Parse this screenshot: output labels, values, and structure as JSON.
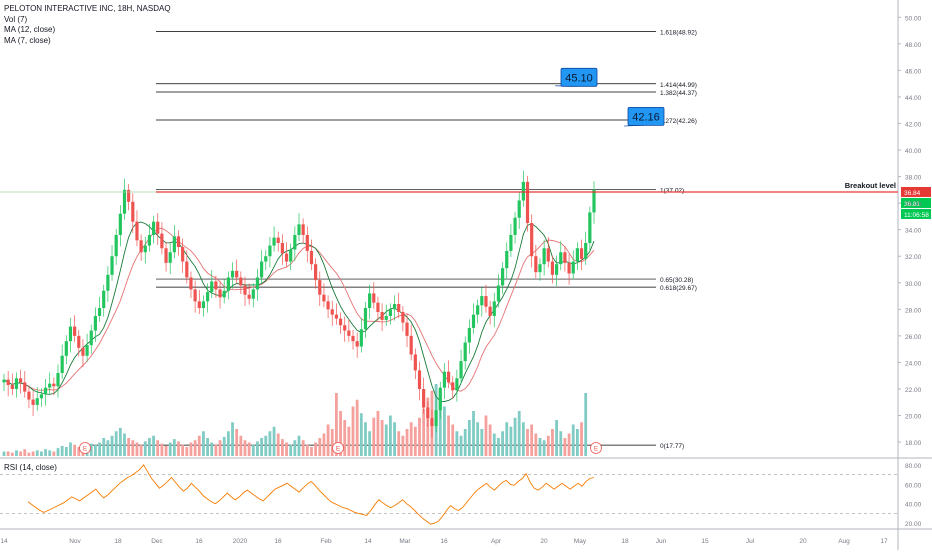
{
  "legend": {
    "title": "PELOTON INTERACTIVE INC, 18H, NASDAQ",
    "vol": "Vol (7)",
    "ma12": "MA (12, close)",
    "ma7": "MA (7, close)"
  },
  "colors": {
    "up": "#26a69a",
    "up_candle": "#22c55e",
    "down": "#ef5350",
    "vol_up": "#80cbc4",
    "vol_down": "#f4a09c",
    "ma_fast": "#1b7a3a",
    "ma_slow": "#e57373",
    "rsi": "#f57c00",
    "breakout": "#e53935",
    "callout": "#2196f3",
    "fib": "#000000"
  },
  "chart_data": [
    {
      "type": "candlestick",
      "title": "PELOTON INTERACTIVE INC, 18H, NASDAQ",
      "ylim": [
        16.8,
        51.0
      ],
      "y_ticks": [
        "50.00",
        "48.00",
        "46.00",
        "44.00",
        "42.00",
        "40.00",
        "38.00",
        "36.00",
        "34.00",
        "32.00",
        "30.00",
        "28.00",
        "26.00",
        "24.00",
        "22.00",
        "20.00",
        "18.00"
      ],
      "x_ticks": [
        "14",
        "Nov",
        "18",
        "Dec",
        "16",
        "2020",
        "16",
        "Feb",
        "14",
        "Mar",
        "16",
        "Apr",
        "20",
        "May",
        "18",
        "Jun",
        "15",
        "Jul",
        "20",
        "Aug",
        "17"
      ],
      "close_path": [
        22.7,
        22.3,
        22.0,
        22.8,
        22.5,
        21.8,
        21.2,
        20.8,
        21.3,
        21.6,
        22.1,
        22.4,
        22.2,
        23.2,
        24.5,
        25.6,
        26.7,
        26.0,
        25.1,
        24.5,
        25.3,
        26.4,
        27.5,
        28.1,
        29.4,
        30.6,
        32.0,
        33.6,
        35.2,
        37.0,
        36.1,
        34.6,
        33.2,
        32.3,
        32.8,
        33.6,
        34.6,
        33.7,
        32.6,
        31.5,
        32.3,
        33.5,
        32.7,
        31.6,
        30.4,
        29.5,
        28.6,
        28.1,
        28.6,
        29.3,
        30.1,
        29.5,
        28.9,
        29.4,
        30.4,
        30.9,
        30.4,
        29.8,
        29.1,
        28.8,
        29.5,
        30.4,
        31.6,
        32.0,
        32.8,
        33.4,
        33.0,
        32.2,
        31.6,
        32.5,
        33.6,
        34.4,
        33.6,
        32.4,
        31.4,
        30.2,
        29.1,
        28.6,
        28.0,
        27.6,
        27.3,
        26.8,
        26.4,
        26.0,
        25.6,
        25.2,
        26.5,
        28.1,
        29.2,
        28.5,
        27.8,
        27.2,
        27.5,
        28.0,
        28.4,
        27.8,
        27.0,
        26.0,
        24.6,
        23.4,
        22.0,
        20.6,
        19.8,
        19.2,
        20.4,
        22.1,
        23.3,
        22.5,
        21.9,
        22.8,
        24.1,
        25.5,
        26.6,
        27.6,
        28.3,
        29.0,
        28.2,
        27.5,
        28.6,
        29.8,
        31.1,
        32.4,
        33.6,
        34.9,
        36.2,
        37.6,
        34.5,
        32.0,
        30.8,
        31.4,
        32.6,
        31.6,
        30.6,
        31.4,
        32.3,
        31.5,
        30.7,
        31.6,
        32.6,
        31.8,
        33.0,
        35.3,
        37.0
      ],
      "open_series": [
        22.5,
        22.7,
        22.3,
        22.0,
        22.8,
        22.5,
        21.8,
        21.2,
        20.8,
        21.3,
        21.6,
        22.1,
        22.4,
        22.2,
        23.2,
        24.5,
        25.6,
        26.7,
        26.0,
        25.1,
        24.5,
        25.3,
        26.4,
        27.5,
        28.1,
        29.4,
        30.6,
        32.0,
        33.6,
        35.2,
        37.0,
        36.1,
        34.6,
        33.2,
        32.3,
        32.8,
        33.6,
        34.6,
        33.7,
        32.6,
        31.5,
        32.3,
        33.5,
        32.7,
        31.6,
        30.4,
        29.5,
        28.6,
        28.1,
        28.6,
        29.3,
        30.1,
        29.5,
        28.9,
        29.4,
        30.4,
        30.9,
        30.4,
        29.8,
        29.1,
        28.8,
        29.5,
        30.4,
        31.6,
        32.0,
        32.8,
        33.4,
        33.0,
        32.2,
        31.6,
        32.5,
        33.6,
        34.4,
        33.6,
        32.4,
        31.4,
        30.2,
        29.1,
        28.6,
        28.0,
        27.6,
        27.3,
        26.8,
        26.4,
        26.0,
        25.6,
        25.2,
        26.5,
        28.1,
        29.2,
        28.5,
        27.8,
        27.2,
        27.5,
        28.0,
        28.4,
        27.8,
        27.0,
        26.0,
        24.6,
        23.4,
        22.0,
        20.6,
        19.8,
        19.2,
        20.4,
        22.1,
        23.3,
        22.5,
        21.9,
        22.8,
        24.1,
        25.5,
        26.6,
        27.6,
        28.3,
        29.0,
        28.2,
        27.5,
        28.6,
        29.8,
        31.1,
        32.4,
        33.6,
        34.9,
        36.2,
        37.6,
        34.5,
        32.0,
        30.8,
        31.4,
        32.6,
        31.6,
        30.6,
        31.4,
        32.3,
        31.5,
        30.7,
        31.6,
        32.6,
        31.8,
        33.0,
        35.3
      ],
      "last_price": "36.84",
      "price_labels": [
        "36.84",
        "36.81",
        "11:06:58"
      ],
      "fib_levels": [
        {
          "label": "1.618(48.92)",
          "value": 48.92
        },
        {
          "label": "1.414(44.99)",
          "value": 44.99
        },
        {
          "label": "1.382(44.37)",
          "value": 44.37
        },
        {
          "label": "1.272(42.26)",
          "value": 42.26
        },
        {
          "label": "1(37.02)",
          "value": 37.02
        },
        {
          "label": "0.65(30.28)",
          "value": 30.28
        },
        {
          "label": "0.618(29.67)",
          "value": 29.67
        },
        {
          "label": "0(17.77)",
          "value": 17.77
        }
      ],
      "breakout": {
        "label": "Breakout level",
        "value": 36.84
      },
      "callouts": [
        {
          "text": "45.10",
          "value": 45.1
        },
        {
          "text": "42.16",
          "value": 42.16
        }
      ],
      "earnings_marker": "E",
      "volume": [
        4,
        4,
        3,
        5,
        4,
        6,
        3,
        4,
        5,
        4,
        6,
        5,
        4,
        7,
        9,
        8,
        12,
        10,
        8,
        6,
        9,
        11,
        10,
        12,
        16,
        14,
        18,
        22,
        25,
        20,
        16,
        14,
        12,
        10,
        13,
        16,
        18,
        14,
        11,
        9,
        12,
        15,
        13,
        10,
        8,
        12,
        14,
        18,
        22,
        16,
        12,
        10,
        14,
        17,
        22,
        30,
        24,
        18,
        14,
        12,
        10,
        13,
        16,
        18,
        22,
        26,
        20,
        15,
        12,
        10,
        14,
        18,
        14,
        10,
        8,
        12,
        16,
        20,
        28,
        24,
        56,
        40,
        32,
        26,
        44,
        50,
        38,
        30,
        22,
        34,
        40,
        32,
        28,
        36,
        30,
        22,
        18,
        24,
        30,
        26,
        34,
        42,
        52,
        58,
        64,
        50,
        44,
        36,
        28,
        22,
        18,
        24,
        32,
        40,
        30,
        24,
        36,
        28,
        20,
        16,
        22,
        30,
        26,
        34,
        40,
        30,
        24,
        28,
        20,
        16,
        14,
        18,
        24,
        32,
        22,
        16,
        20,
        28,
        24,
        30,
        56
      ]
    },
    {
      "type": "line",
      "title": "RSI (14, close)",
      "ylim": [
        16,
        84
      ],
      "y_ticks": [
        "80.00",
        "60.00",
        "40.00",
        "20.00"
      ],
      "guide_levels": [
        70,
        30
      ],
      "values": [
        42,
        39,
        36,
        33,
        31,
        33,
        35,
        37,
        39,
        41,
        44,
        47,
        45,
        43,
        46,
        49,
        52,
        55,
        50,
        46,
        49,
        53,
        57,
        61,
        64,
        67,
        69,
        72,
        75,
        80,
        73,
        66,
        61,
        56,
        59,
        63,
        67,
        62,
        57,
        53,
        56,
        61,
        57,
        53,
        48,
        45,
        42,
        40,
        43,
        47,
        51,
        47,
        44,
        47,
        51,
        54,
        51,
        48,
        45,
        43,
        47,
        51,
        55,
        57,
        59,
        61,
        58,
        55,
        52,
        56,
        60,
        63,
        59,
        54,
        50,
        46,
        42,
        40,
        38,
        36,
        35,
        33,
        31,
        30,
        29,
        28,
        33,
        39,
        44,
        41,
        38,
        36,
        38,
        41,
        44,
        40,
        37,
        33,
        29,
        25,
        22,
        19,
        20,
        22,
        27,
        33,
        38,
        35,
        33,
        36,
        41,
        46,
        51,
        55,
        58,
        61,
        57,
        54,
        58,
        62,
        64,
        60,
        59,
        63,
        66,
        71,
        62,
        56,
        54,
        57,
        61,
        58,
        55,
        58,
        61,
        58,
        55,
        58,
        61,
        58,
        63,
        66,
        67
      ]
    }
  ]
}
